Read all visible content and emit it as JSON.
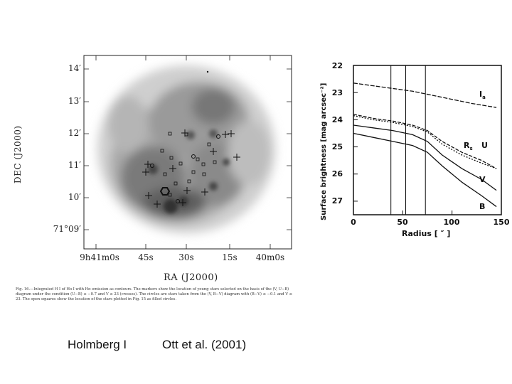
{
  "left_figure": {
    "dec_axis_label": "DEC (J2000)",
    "ra_axis_label": "RA (J2000)",
    "dec_ticks": [
      "14′",
      "13′",
      "12′",
      "11′",
      "10′",
      "71°09′"
    ],
    "ra_ticks": [
      "9h41m0s",
      "45s",
      "30s",
      "15s",
      "40m0s"
    ],
    "caption": "Fig. 16.—Integrated H I of Ho I with Hα emission as contours. The markers show the location of young stars selected on the basis of the (V, U−B) diagram under the condition (U−B) ≤ −0.7 and V ≤ 23 (crosses). The circles are stars taken from the (V, B−V) diagram with (B−V) ≤ −0.1 and V ≤ 23. The open squares show the location of the stars plotted in Fig. 15 as filled circles."
  },
  "chart_data": {
    "type": "line",
    "ylabel": "Surface brightness [mag arcsec⁻²]",
    "xlabel": "Radius [ ″ ]",
    "xlim": [
      0,
      150
    ],
    "ylim": [
      27.5,
      22
    ],
    "y_inverted": true,
    "xticks": [
      0,
      50,
      100,
      150
    ],
    "yticks": [
      22,
      23,
      24,
      25,
      26,
      27
    ],
    "vertical_lines": [
      38,
      53,
      73
    ],
    "series": [
      {
        "name": "Iₐ",
        "x": [
          0,
          20,
          40,
          60,
          80,
          100,
          120,
          145
        ],
        "values": [
          22.65,
          22.75,
          22.85,
          22.95,
          23.1,
          23.25,
          23.4,
          23.55
        ]
      },
      {
        "name": "R",
        "x": [
          0,
          20,
          40,
          60,
          75,
          90,
          110,
          130,
          145
        ],
        "values": [
          23.8,
          23.95,
          24.05,
          24.2,
          24.4,
          24.8,
          25.2,
          25.5,
          25.8
        ]
      },
      {
        "name": "U",
        "x": [
          0,
          20,
          40,
          60,
          75,
          90,
          110,
          130,
          145
        ],
        "values": [
          23.85,
          24.0,
          24.1,
          24.25,
          24.45,
          24.9,
          25.3,
          25.6,
          25.8
        ]
      },
      {
        "name": "V",
        "x": [
          0,
          20,
          40,
          60,
          75,
          90,
          110,
          130,
          145
        ],
        "values": [
          24.2,
          24.3,
          24.4,
          24.55,
          24.8,
          25.3,
          25.8,
          26.2,
          26.6
        ]
      },
      {
        "name": "B",
        "x": [
          0,
          20,
          40,
          60,
          75,
          90,
          110,
          130,
          145
        ],
        "values": [
          24.5,
          24.65,
          24.8,
          24.95,
          25.2,
          25.7,
          26.3,
          26.8,
          27.2
        ]
      }
    ],
    "labels": {
      "I": "I",
      "I_sub": "a",
      "R": "R",
      "R_sub": "s",
      "U": "U",
      "V": "V",
      "B": "B"
    }
  },
  "bottom": {
    "left_credit": "Holmberg I",
    "right_credit": "Ott et al. (2001)"
  }
}
